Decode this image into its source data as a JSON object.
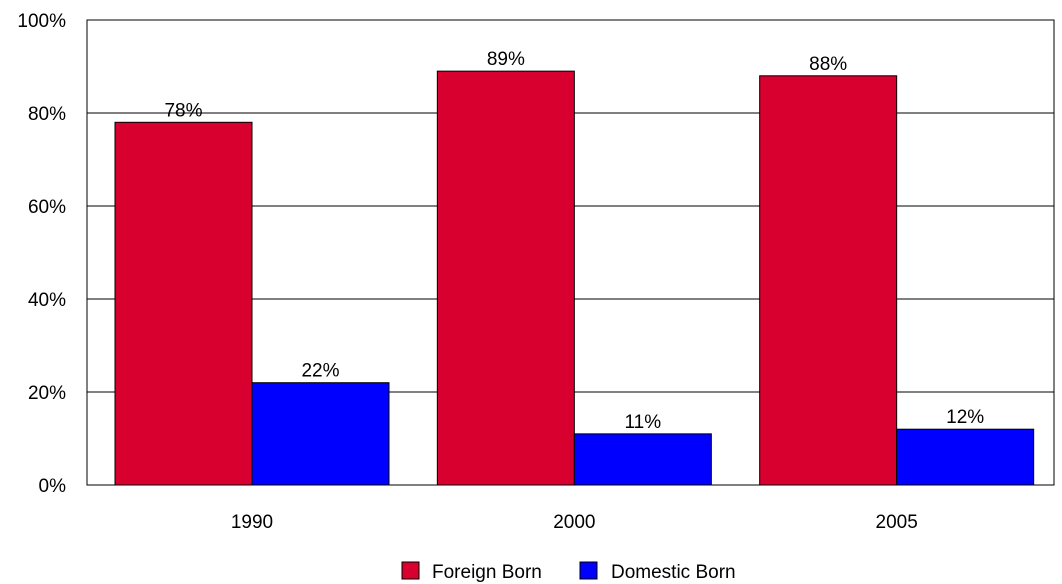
{
  "chart_data": {
    "type": "bar",
    "categories": [
      "1990",
      "2000",
      "2005"
    ],
    "series": [
      {
        "name": "Foreign Born",
        "values": [
          78,
          89,
          88
        ],
        "labels": [
          "78%",
          "89%",
          "88%"
        ],
        "color": "#d7002e"
      },
      {
        "name": "Domestic Born",
        "values": [
          22,
          11,
          12
        ],
        "labels": [
          "22%",
          "11%",
          "12%"
        ],
        "color": "#0000ff"
      }
    ],
    "ylim": [
      0,
      100
    ],
    "yticks": [
      0,
      20,
      40,
      60,
      80,
      100
    ],
    "ytick_labels": [
      "0%",
      "20%",
      "40%",
      "60%",
      "80%",
      "100%"
    ],
    "grid": true,
    "legend_position": "bottom"
  }
}
